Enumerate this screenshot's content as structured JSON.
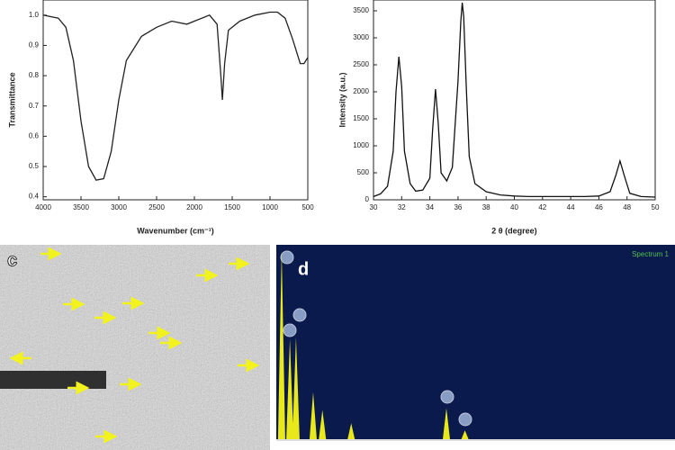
{
  "chart_data": [
    {
      "type": "line",
      "x_label": "Wavenumber (cm⁻¹)",
      "y_label": "Transmittance",
      "xlim": [
        4000,
        500
      ],
      "ylim": [
        0.39,
        1.05
      ],
      "xticks": [
        4000,
        3500,
        3000,
        2500,
        2000,
        1500,
        1000,
        500
      ],
      "yticks": [
        0.4,
        0.5,
        0.6,
        0.7,
        0.8,
        0.9,
        {
          "value": 1,
          "label": "1.0"
        }
      ],
      "color": "#222222",
      "x": [
        4000,
        3800,
        3700,
        3600,
        3500,
        3400,
        3300,
        3200,
        3100,
        3000,
        2900,
        2700,
        2500,
        2300,
        2100,
        2000,
        1800,
        1700,
        1650,
        1630,
        1600,
        1550,
        1400,
        1200,
        1000,
        900,
        800,
        700,
        600,
        550,
        500
      ],
      "values": [
        1.0,
        0.99,
        0.96,
        0.85,
        0.65,
        0.5,
        0.455,
        0.46,
        0.55,
        0.72,
        0.85,
        0.93,
        0.96,
        0.98,
        0.97,
        0.98,
        1.0,
        0.97,
        0.8,
        0.72,
        0.84,
        0.95,
        0.98,
        1.0,
        1.01,
        1.01,
        0.99,
        0.92,
        0.84,
        0.84,
        0.86
      ]
    },
    {
      "type": "line",
      "x_label": "2 θ (degree)",
      "y_label": "Intensity (a.u.)",
      "xlim": [
        30,
        50
      ],
      "ylim": [
        0,
        3700
      ],
      "xticks": [
        30,
        32,
        34,
        36,
        38,
        40,
        42,
        44,
        46,
        48,
        50
      ],
      "yticks": [
        0,
        500,
        1000,
        1500,
        2000,
        2500,
        3000,
        3500
      ],
      "color": "#111111",
      "x": [
        30,
        30.5,
        31,
        31.4,
        31.6,
        31.8,
        32,
        32.2,
        32.6,
        33,
        33.5,
        34,
        34.2,
        34.4,
        34.6,
        34.8,
        35.2,
        35.6,
        36,
        36.2,
        36.3,
        36.4,
        36.6,
        36.8,
        37.2,
        38,
        39,
        40,
        41,
        42,
        43,
        44,
        45,
        46,
        46.8,
        47.2,
        47.5,
        47.8,
        48.2,
        49,
        50
      ],
      "values": [
        60,
        110,
        250,
        900,
        2000,
        2650,
        2100,
        900,
        300,
        160,
        180,
        400,
        1300,
        2050,
        1400,
        500,
        350,
        600,
        2200,
        3300,
        3650,
        3400,
        2000,
        800,
        300,
        150,
        90,
        70,
        60,
        60,
        60,
        60,
        60,
        70,
        150,
        450,
        720,
        450,
        120,
        60,
        50
      ]
    },
    {
      "type": "image",
      "label": "c"
    },
    {
      "type": "spectrum",
      "label": "d",
      "annotation": "Spectrum 1",
      "xlim": [
        0,
        20
      ],
      "ylim": [
        0,
        215
      ],
      "color": "#e8e81a",
      "x": [
        0.27,
        0.69,
        1.0,
        1.87,
        2.34,
        3.8,
        8.63,
        9.57
      ],
      "values": [
        213,
        113,
        115,
        53,
        33,
        18,
        35,
        10
      ]
    }
  ]
}
